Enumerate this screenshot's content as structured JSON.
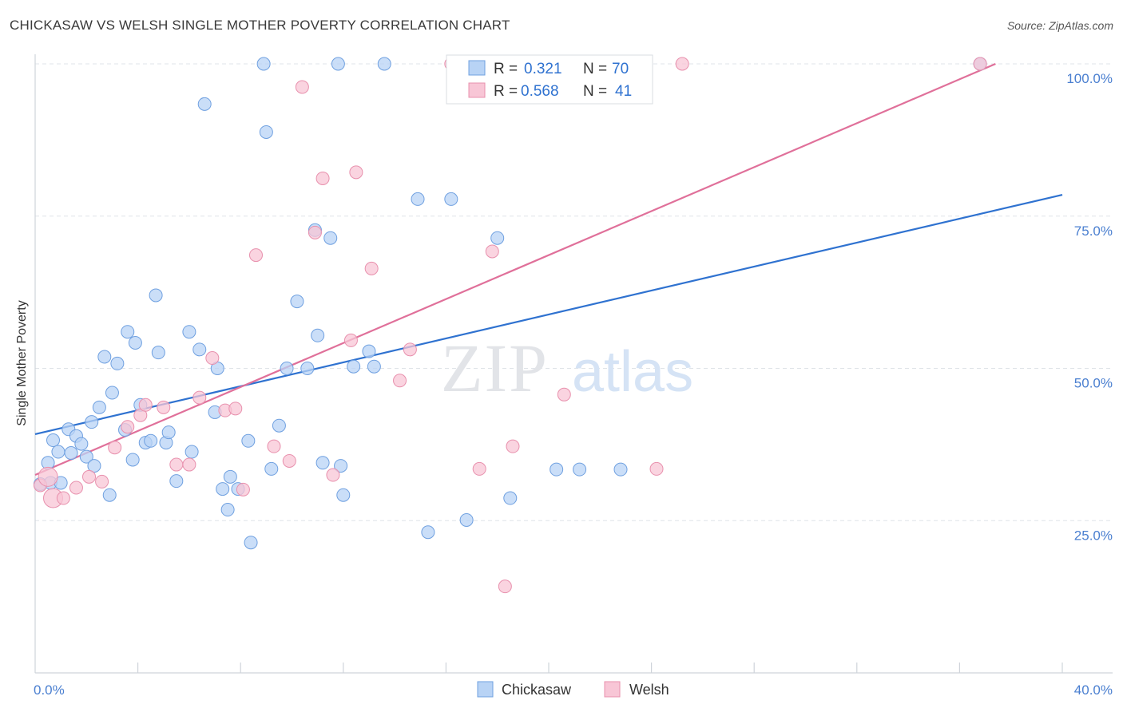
{
  "title": "CHICKASAW VS WELSH SINGLE MOTHER POVERTY CORRELATION CHART",
  "source": "Source: ZipAtlas.com",
  "watermark": {
    "zip": "ZIP",
    "atlas": "atlas"
  },
  "colors": {
    "chickasaw_fill": "#b8d3f5",
    "chickasaw_stroke": "#6fa0e0",
    "chickasaw_line": "#2f72d0",
    "welsh_fill": "#f8c6d6",
    "welsh_stroke": "#e890ad",
    "welsh_line": "#e0709a",
    "grid": "#dfe3e8",
    "tick_label": "#4a7fd0"
  },
  "legend": {
    "chickasaw": {
      "r_label": "R =",
      "r_value": "0.321",
      "n_label": "N =",
      "n_value": "70"
    },
    "welsh": {
      "r_label": "R =",
      "r_value": "0.568",
      "n_label": "N =",
      "n_value": "41"
    }
  },
  "chart_data": {
    "type": "scatter",
    "title": "CHICKASAW VS WELSH SINGLE MOTHER POVERTY CORRELATION CHART",
    "xlabel": "",
    "ylabel": "Single Mother Poverty",
    "xlim": [
      0,
      40
    ],
    "ylim": [
      0,
      104
    ],
    "x_ticks": [
      {
        "value": 0,
        "label": "0.0%"
      },
      {
        "value": 40,
        "label": "40.0%"
      }
    ],
    "y_ticks": [
      {
        "value": 25,
        "label": "25.0%"
      },
      {
        "value": 50,
        "label": "50.0%"
      },
      {
        "value": 75,
        "label": "75.0%"
      },
      {
        "value": 100,
        "label": "100.0%"
      }
    ],
    "grid": true,
    "legend_position": "top-center",
    "series": [
      {
        "name": "Chickasaw",
        "trend": {
          "x0": 0,
          "y0": 39.2,
          "x1": 40,
          "y1": 78.5
        },
        "points": [
          [
            0.2,
            31.0
          ],
          [
            0.5,
            34.5
          ],
          [
            0.6,
            31.2
          ],
          [
            0.7,
            38.2
          ],
          [
            0.9,
            36.3
          ],
          [
            1.0,
            31.2
          ],
          [
            1.3,
            40.0
          ],
          [
            1.4,
            36.1
          ],
          [
            1.6,
            38.9
          ],
          [
            1.8,
            37.6
          ],
          [
            2.0,
            35.5
          ],
          [
            2.2,
            41.2
          ],
          [
            2.3,
            34.0
          ],
          [
            2.5,
            43.6
          ],
          [
            2.7,
            51.9
          ],
          [
            2.9,
            29.2
          ],
          [
            3.0,
            46.0
          ],
          [
            3.2,
            50.8
          ],
          [
            3.5,
            39.9
          ],
          [
            3.6,
            56.0
          ],
          [
            3.8,
            35.0
          ],
          [
            3.9,
            54.2
          ],
          [
            4.1,
            44.0
          ],
          [
            4.3,
            37.8
          ],
          [
            4.5,
            38.1
          ],
          [
            4.7,
            62.0
          ],
          [
            4.8,
            52.6
          ],
          [
            5.1,
            37.8
          ],
          [
            5.2,
            39.5
          ],
          [
            5.5,
            31.5
          ],
          [
            6.0,
            56.0
          ],
          [
            6.1,
            36.3
          ],
          [
            6.4,
            53.1
          ],
          [
            6.6,
            93.4
          ],
          [
            7.0,
            42.8
          ],
          [
            7.1,
            50.0
          ],
          [
            7.3,
            30.2
          ],
          [
            7.5,
            26.8
          ],
          [
            7.6,
            32.2
          ],
          [
            7.9,
            30.2
          ],
          [
            8.3,
            38.1
          ],
          [
            8.4,
            21.4
          ],
          [
            8.9,
            100.0
          ],
          [
            9.0,
            88.8
          ],
          [
            9.2,
            33.5
          ],
          [
            9.5,
            40.6
          ],
          [
            9.8,
            50.0
          ],
          [
            10.2,
            61.0
          ],
          [
            10.6,
            50.0
          ],
          [
            10.9,
            72.7
          ],
          [
            11.0,
            55.4
          ],
          [
            11.2,
            34.5
          ],
          [
            11.5,
            71.4
          ],
          [
            11.8,
            100.0
          ],
          [
            11.9,
            34.0
          ],
          [
            12.0,
            29.2
          ],
          [
            12.4,
            50.3
          ],
          [
            13.0,
            52.8
          ],
          [
            13.2,
            50.3
          ],
          [
            13.6,
            100.0
          ],
          [
            14.9,
            77.8
          ],
          [
            15.3,
            23.1
          ],
          [
            16.2,
            77.8
          ],
          [
            16.8,
            25.1
          ],
          [
            18.0,
            71.4
          ],
          [
            18.5,
            28.7
          ],
          [
            20.3,
            33.4
          ],
          [
            21.2,
            33.4
          ],
          [
            22.8,
            33.4
          ],
          [
            36.8,
            100.0
          ]
        ]
      },
      {
        "name": "Welsh",
        "trend": {
          "x0": 0,
          "y0": 32.5,
          "x1": 37.4,
          "y1": 100.0
        },
        "points": [
          [
            0.2,
            30.8
          ],
          [
            0.5,
            32.2
          ],
          [
            0.7,
            28.7
          ],
          [
            1.1,
            28.7
          ],
          [
            1.6,
            30.4
          ],
          [
            2.1,
            32.2
          ],
          [
            2.6,
            31.4
          ],
          [
            3.1,
            37.0
          ],
          [
            3.6,
            40.4
          ],
          [
            4.1,
            42.3
          ],
          [
            4.3,
            44.0
          ],
          [
            5.0,
            43.6
          ],
          [
            5.5,
            34.2
          ],
          [
            6.0,
            34.2
          ],
          [
            6.4,
            45.2
          ],
          [
            6.9,
            51.7
          ],
          [
            7.4,
            43.1
          ],
          [
            7.8,
            43.4
          ],
          [
            8.1,
            30.1
          ],
          [
            8.6,
            68.6
          ],
          [
            9.3,
            37.2
          ],
          [
            9.9,
            34.8
          ],
          [
            10.4,
            96.2
          ],
          [
            10.9,
            72.3
          ],
          [
            11.2,
            81.2
          ],
          [
            11.6,
            32.5
          ],
          [
            12.3,
            54.6
          ],
          [
            12.5,
            82.2
          ],
          [
            13.1,
            66.4
          ],
          [
            14.2,
            48.0
          ],
          [
            14.6,
            53.1
          ],
          [
            16.2,
            100.0
          ],
          [
            17.3,
            33.5
          ],
          [
            17.8,
            69.2
          ],
          [
            18.3,
            14.2
          ],
          [
            18.6,
            37.2
          ],
          [
            20.6,
            45.7
          ],
          [
            22.2,
            100.0
          ],
          [
            24.2,
            33.5
          ],
          [
            25.2,
            100.0
          ],
          [
            36.8,
            100.0
          ]
        ]
      }
    ]
  },
  "bottom_legend": {
    "chickasaw": "Chickasaw",
    "welsh": "Welsh"
  }
}
